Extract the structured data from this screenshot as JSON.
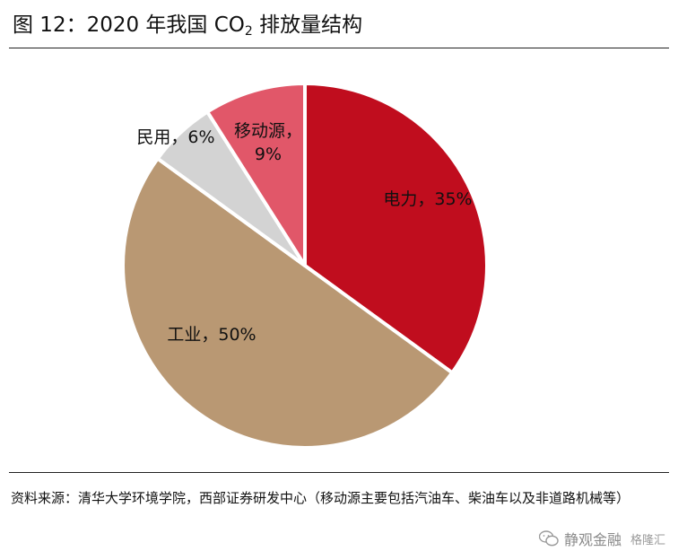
{
  "header": {
    "title_main": "图 12：2020 年我国 CO",
    "title_sub": "2",
    "title_tail": " 排放量结构"
  },
  "chart_data": {
    "type": "pie",
    "title": "",
    "slices": [
      {
        "name": "电力",
        "value": 35,
        "label_line1": "电力，35%",
        "label_line2": "",
        "color": "#c00d1e"
      },
      {
        "name": "工业",
        "value": 50,
        "label_line1": "工业，50%",
        "label_line2": "",
        "color": "#b99873"
      },
      {
        "name": "民用",
        "value": 6,
        "label_line1": "民用，6%",
        "label_line2": "",
        "color": "#d3d3d3"
      },
      {
        "name": "移动源",
        "value": 9,
        "label_line1": "移动源，",
        "label_line2": "9%",
        "color": "#e15769"
      }
    ],
    "start_angle_deg": 0,
    "direction": "clockwise"
  },
  "footer": {
    "source": "资料来源：清华大学环境学院，西部证券研发中心（移动源主要包括汽油车、柴油车以及非道路机械等）"
  },
  "watermark": {
    "brand": "静观金融",
    "sub": "格隆汇",
    "icon": "wechat-icon"
  }
}
